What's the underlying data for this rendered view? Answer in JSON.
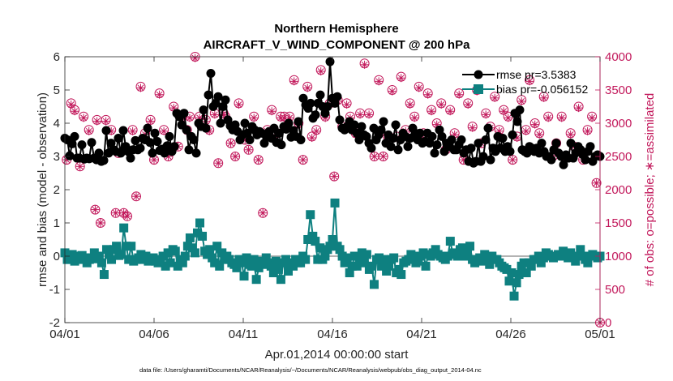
{
  "chart_data": {
    "type": "line",
    "title": "Northern Hemisphere",
    "subtitle": "AIRCRAFT_V_WIND_COMPONENT @ 200 hPa",
    "xlabel": "Apr.01,2014 00:00:00 start",
    "ylabel": "rmse and bias (model - observation)",
    "ylabel_right": "# of obs: o=possible; ∗=assimilated",
    "footnote": "data file: /Users/gharamti/Documents/NCAR/Reanalysis/~/Documents/NCAR/Reanalysis/webpub/obs_diag_output_2014-04.nc",
    "xlim": [
      0,
      30
    ],
    "ylim": [
      -2,
      6
    ],
    "ylim_right": [
      0,
      4000
    ],
    "x_ticks": [
      0,
      5,
      10,
      15,
      20,
      25,
      30
    ],
    "x_tick_labels": [
      "04/01",
      "04/06",
      "04/11",
      "04/16",
      "04/21",
      "04/26",
      "05/01"
    ],
    "y_ticks": [
      -2,
      -1,
      0,
      1,
      2,
      3,
      4,
      5,
      6
    ],
    "y_ticks_right": [
      0,
      500,
      1000,
      1500,
      2000,
      2500,
      3000,
      3500,
      4000
    ],
    "legend": [
      "rmse pr=3.5383",
      "bias pr=-0.056152"
    ],
    "legend_position": "top-right",
    "colors": {
      "rmse": "#000000",
      "bias": "#0e8080",
      "obs": "#c2185b",
      "zero_line": "#b3b3b3"
    },
    "series": [
      {
        "name": "rmse",
        "axis": "left",
        "marker": "circle",
        "values": [
          3.55,
          3.5,
          3.02,
          3.38,
          3.6,
          2.95,
          2.95,
          3.35,
          2.92,
          2.95,
          2.93,
          3.42,
          2.95,
          2.9,
          3.1,
          2.85,
          2.88,
          3.78,
          3.1,
          3.4,
          3.2,
          3.15,
          3.55,
          3.1,
          3.78,
          3.3,
          3.15,
          2.95,
          3.2,
          3.48,
          3.2,
          3.25,
          3.55,
          3.5,
          3.85,
          3.42,
          3.1,
          3.7,
          3.45,
          3.18,
          3.22,
          3.1,
          3.32,
          3.6,
          3.15,
          3.3,
          4.3,
          4.2,
          3.95,
          4.3,
          3.8,
          3.2,
          3.6,
          3.5,
          3.1,
          4.0,
          3.9,
          4.4,
          3.85,
          4.85,
          5.5,
          4.5,
          4.6,
          4.8,
          4.0,
          4.5,
          4.7,
          4.1,
          3.92,
          3.8,
          3.95,
          3.75,
          3.5,
          3.65,
          4.0,
          3.7,
          3.5,
          3.9,
          3.8,
          3.65,
          3.75,
          3.7,
          3.4,
          3.6,
          3.75,
          3.55,
          3.85,
          3.42,
          3.7,
          3.35,
          3.9,
          3.82,
          4.0,
          3.58,
          3.78,
          3.6,
          4.05,
          3.5,
          4.75,
          4.55,
          4.45,
          4.6,
          4.15,
          4.25,
          4.6,
          4.85,
          4.5,
          4.3,
          4.5,
          5.85,
          4.75,
          4.6,
          4.8,
          4.1,
          3.85,
          3.8,
          3.9,
          4.05,
          3.8,
          3.95,
          3.7,
          3.5,
          3.9,
          3.65,
          3.6,
          3.4,
          3.25,
          3.85,
          3.5,
          3.65,
          3.8,
          4.05,
          3.4,
          3.65,
          3.3,
          3.55,
          3.95,
          3.2,
          3.5,
          3.7,
          3.6,
          3.3,
          3.55,
          3.85,
          3.7,
          3.5,
          3.7,
          3.4,
          3.45,
          3.7,
          3.4,
          3.6,
          3.1,
          3.35,
          3.8,
          3.6,
          3.15,
          3.4,
          3.3,
          3.5,
          3.2,
          3.2,
          3.35,
          3.5,
          3.1,
          3.2,
          2.85,
          3.25,
          2.8,
          2.85,
          3.4,
          2.85,
          3.0,
          3.5,
          3.85,
          2.9,
          3.25,
          3.15,
          3.6,
          3.25,
          3.55,
          3.15,
          3.3,
          3.15,
          3.65,
          4.3,
          4.05,
          4.4,
          3.2,
          3.15,
          3.1,
          3.3,
          3.25,
          3.15,
          3.25,
          3.1,
          3.4,
          3.15,
          3.0,
          3.0,
          2.9,
          3.2,
          3.4,
          3.1,
          3.0,
          2.75,
          3.05,
          2.95,
          3.4,
          2.95,
          3.1,
          3.3,
          3.2,
          3.05,
          2.9,
          3.15,
          3.3,
          2.85,
          3.0,
          3.05,
          3.0
        ]
      },
      {
        "name": "bias",
        "axis": "left",
        "marker": "square",
        "values": [
          0.1,
          -0.1,
          -0.1,
          0.05,
          -0.15,
          0.0,
          -0.1,
          0.02,
          -0.05,
          -0.2,
          -0.1,
          -0.05,
          0.1,
          -0.08,
          0.0,
          -0.2,
          -0.55,
          0.2,
          0.05,
          -0.1,
          0.2,
          0.3,
          0.02,
          0.05,
          0.85,
          0.3,
          -0.1,
          0.3,
          -0.15,
          -0.1,
          -0.05,
          0.05,
          -0.1,
          0.0,
          -0.15,
          -0.1,
          -0.05,
          -0.15,
          -0.2,
          -0.1,
          0.0,
          -0.3,
          0.1,
          -0.2,
          0.2,
          0.15,
          -0.3,
          -0.1,
          -0.2,
          0.0,
          0.3,
          0.55,
          0.25,
          0.1,
          0.7,
          1.0,
          0.6,
          0.15,
          0.05,
          0.2,
          -0.05,
          -0.2,
          0.3,
          -0.3,
          0.1,
          -0.1,
          0.0,
          -0.1,
          -0.2,
          -0.25,
          -0.35,
          -0.1,
          -0.2,
          -0.6,
          -0.05,
          -0.25,
          -0.3,
          -0.1,
          -0.7,
          -0.35,
          -0.15,
          -0.25,
          -0.05,
          -0.2,
          -0.3,
          -0.5,
          -0.15,
          -0.4,
          -0.7,
          -0.2,
          -0.1,
          -0.45,
          -0.2,
          -0.3,
          -0.1,
          -0.2,
          -0.2,
          0.0,
          -0.1,
          0.5,
          1.25,
          0.6,
          0.45,
          -0.1,
          0.25,
          -0.1,
          0.0,
          0.2,
          0.3,
          0.5,
          1.6,
          0.3,
          0.2,
          0.0,
          -0.2,
          -0.05,
          -0.5,
          -0.3,
          0.0,
          -0.3,
          -0.1,
          0.1,
          -0.2,
          0.05,
          -0.4,
          -0.3,
          -0.85,
          -0.1,
          -0.05,
          -0.3,
          -0.1,
          -0.45,
          -0.3,
          -0.1,
          -0.05,
          -0.5,
          -0.4,
          -0.55,
          -0.2,
          -0.15,
          -0.1,
          0.05,
          0.0,
          -0.2,
          -0.15,
          0.0,
          0.1,
          -0.3,
          0.05,
          0.0,
          0.1,
          0.2,
          0.05,
          0.0,
          -0.05,
          -0.1,
          0.0,
          0.45,
          0.1,
          0.05,
          0.0,
          0.2,
          0.25,
          0.0,
          0.05,
          0.3,
          -0.1,
          -0.2,
          -0.1,
          -0.05,
          -0.15,
          0.05,
          0.0,
          -0.25,
          0.0,
          -0.1,
          -0.1,
          -0.2,
          -0.3,
          -0.35,
          -0.4,
          -0.75,
          -0.5,
          -1.2,
          -0.8,
          -0.55,
          -0.3,
          -0.2,
          -0.5,
          -0.2,
          -0.3,
          -0.1,
          -0.1,
          0.0,
          -0.2,
          -0.05,
          0.1,
          0.05,
          0.0,
          -0.05,
          0.0,
          0.05,
          0.0,
          0.15,
          0.0,
          -0.05,
          0.1,
          0.0,
          -0.15,
          0.0,
          0.2,
          0.0,
          -0.1,
          -0.2,
          0.0,
          0.05,
          0.0,
          -0.05,
          0.0
        ]
      },
      {
        "name": "obs possible (o)",
        "axis": "right",
        "marker": "circle-open",
        "x": [
          0.1,
          0.35,
          0.55,
          0.85,
          1.05,
          1.35,
          1.7,
          1.8,
          2.0,
          2.3,
          2.6,
          2.85,
          3.0,
          3.3,
          3.5,
          3.8,
          4.0,
          4.25,
          4.5,
          4.8,
          5.0,
          5.3,
          5.55,
          5.8,
          6.1,
          6.35,
          6.6,
          6.85,
          7.0,
          7.3,
          7.55,
          7.9,
          8.1,
          8.4,
          8.6,
          8.9,
          9.0,
          9.3,
          9.55,
          9.75,
          10.1,
          10.3,
          10.6,
          10.85,
          11.1,
          11.35,
          11.6,
          11.9,
          12.1,
          12.3,
          12.6,
          12.85,
          13.1,
          13.35,
          13.6,
          13.85,
          14.1,
          14.35,
          14.6,
          14.85,
          15.1,
          15.3,
          15.55,
          15.8,
          16.0,
          16.3,
          16.55,
          16.8,
          17.05,
          17.35,
          17.6,
          17.85,
          18.1,
          18.35,
          18.6,
          18.85,
          19.1,
          19.35,
          19.6,
          19.85,
          20.1,
          20.35,
          20.55,
          20.85,
          21.1,
          21.35,
          21.6,
          21.85,
          22.1,
          22.35,
          22.6,
          22.85,
          23.1,
          23.35,
          23.6,
          23.85,
          24.1,
          24.35,
          24.6,
          24.85,
          25.1,
          25.35,
          25.6,
          25.85,
          26.05,
          26.35,
          26.6,
          26.85,
          27.1,
          27.35,
          27.55,
          27.85,
          28.1,
          28.35,
          28.55,
          28.8,
          29.05,
          29.3,
          29.55,
          29.8,
          30.0
        ],
        "values": [
          2450,
          3300,
          3200,
          2350,
          3100,
          2900,
          1700,
          3050,
          1500,
          3050,
          2900,
          1650,
          2550,
          1650,
          1600,
          2900,
          1900,
          3550,
          2850,
          3050,
          2450,
          3450,
          2900,
          2500,
          3250,
          2650,
          3100,
          2900,
          3100,
          4000,
          3100,
          3050,
          2900,
          3150,
          2400,
          3150,
          3100,
          2700,
          2500,
          3300,
          2750,
          2600,
          3100,
          2450,
          1650,
          2900,
          3200,
          2850,
          3100,
          3100,
          3100,
          3650,
          3000,
          2450,
          3550,
          2800,
          2900,
          3800,
          3100,
          3300,
          2200,
          3350,
          2950,
          3300,
          3100,
          2850,
          3150,
          3900,
          3150,
          2500,
          3650,
          2500,
          2800,
          3500,
          2800,
          3700,
          2900,
          3300,
          3100,
          3550,
          2850,
          3450,
          3200,
          3000,
          3300,
          2600,
          3200,
          2850,
          3450,
          2450,
          3300,
          2950,
          3500,
          2700,
          3150,
          2950,
          3400,
          2900,
          3200,
          3100,
          2450,
          2800,
          3350,
          2900,
          3650,
          3000,
          2850,
          3400,
          3100,
          2500,
          2700,
          3100,
          2500,
          2850,
          2650,
          3250,
          2450,
          2900,
          3100,
          2100,
          0
        ]
      },
      {
        "name": "obs assimilated (∗)",
        "axis": "right",
        "marker": "asterisk",
        "x": [
          0.1,
          0.35,
          0.55,
          0.85,
          1.05,
          1.35,
          1.7,
          1.8,
          2.0,
          2.3,
          2.6,
          2.85,
          3.0,
          3.3,
          3.5,
          3.8,
          4.0,
          4.25,
          4.5,
          4.8,
          5.0,
          5.3,
          5.55,
          5.8,
          6.1,
          6.35,
          6.6,
          6.85,
          7.0,
          7.3,
          7.55,
          7.9,
          8.1,
          8.4,
          8.6,
          8.9,
          9.0,
          9.3,
          9.55,
          9.75,
          10.1,
          10.3,
          10.6,
          10.85,
          11.1,
          11.35,
          11.6,
          11.9,
          12.1,
          12.3,
          12.6,
          12.85,
          13.1,
          13.35,
          13.6,
          13.85,
          14.1,
          14.35,
          14.6,
          14.85,
          15.1,
          15.3,
          15.55,
          15.8,
          16.0,
          16.3,
          16.55,
          16.8,
          17.05,
          17.35,
          17.6,
          17.85,
          18.1,
          18.35,
          18.6,
          18.85,
          19.1,
          19.35,
          19.6,
          19.85,
          20.1,
          20.35,
          20.55,
          20.85,
          21.1,
          21.35,
          21.6,
          21.85,
          22.1,
          22.35,
          22.6,
          22.85,
          23.1,
          23.35,
          23.6,
          23.85,
          24.1,
          24.35,
          24.6,
          24.85,
          25.1,
          25.35,
          25.6,
          25.85,
          26.05,
          26.35,
          26.6,
          26.85,
          27.1,
          27.35,
          27.55,
          27.85,
          28.1,
          28.35,
          28.55,
          28.8,
          29.05,
          29.3,
          29.55,
          29.8,
          30.0
        ],
        "values": [
          2450,
          3280,
          3180,
          2350,
          3080,
          2880,
          1700,
          3030,
          1500,
          3030,
          2880,
          1650,
          2550,
          1650,
          1600,
          2880,
          1900,
          3530,
          2830,
          3030,
          2450,
          3430,
          2880,
          2500,
          3230,
          2650,
          3080,
          2880,
          3080,
          3980,
          3080,
          3030,
          2880,
          3130,
          2400,
          3130,
          3080,
          2700,
          2500,
          3280,
          2750,
          2600,
          3080,
          2450,
          1650,
          2880,
          3180,
          2830,
          3080,
          3080,
          3080,
          3630,
          2980,
          2450,
          3530,
          2780,
          2880,
          3780,
          3080,
          3280,
          2200,
          3330,
          2930,
          3280,
          3080,
          2830,
          3130,
          3880,
          3130,
          2500,
          3630,
          2500,
          2780,
          3480,
          2780,
          3680,
          2880,
          3280,
          3080,
          3530,
          2830,
          3430,
          3180,
          2980,
          3280,
          2600,
          3180,
          2830,
          3430,
          2450,
          3280,
          2930,
          3480,
          2700,
          3130,
          2930,
          3380,
          2880,
          3180,
          3080,
          2450,
          2780,
          3330,
          2880,
          3630,
          2980,
          2830,
          3380,
          3080,
          2500,
          2700,
          3080,
          2500,
          2830,
          2650,
          3230,
          2450,
          2880,
          3080,
          2100,
          0
        ]
      }
    ]
  }
}
